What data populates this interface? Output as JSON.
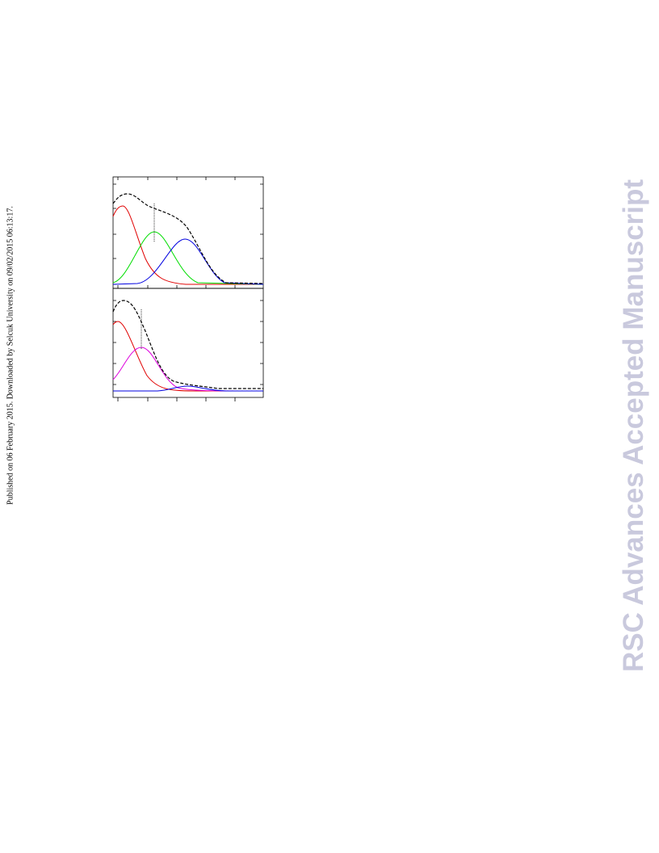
{
  "header": {
    "publication_note": "Published on 06 February 2015. Downloaded by Selcuk University on 09/02/2015 06:13:17."
  },
  "watermark": {
    "text": "RSC Advances Accepted Manuscript"
  }
}
